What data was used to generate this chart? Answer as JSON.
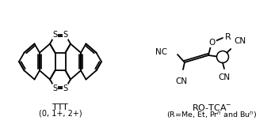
{
  "background_color": "#ffffff",
  "line_color": "#000000",
  "lw": 1.3,
  "figsize": [
    3.42,
    1.57
  ],
  "dpi": 100,
  "title_left": "TTT",
  "subtitle_left": "(0, 1+, 2+)",
  "title_right": "RO-TCA",
  "subtitle_right": "(R=Me, Et, Pr  and Bu )"
}
